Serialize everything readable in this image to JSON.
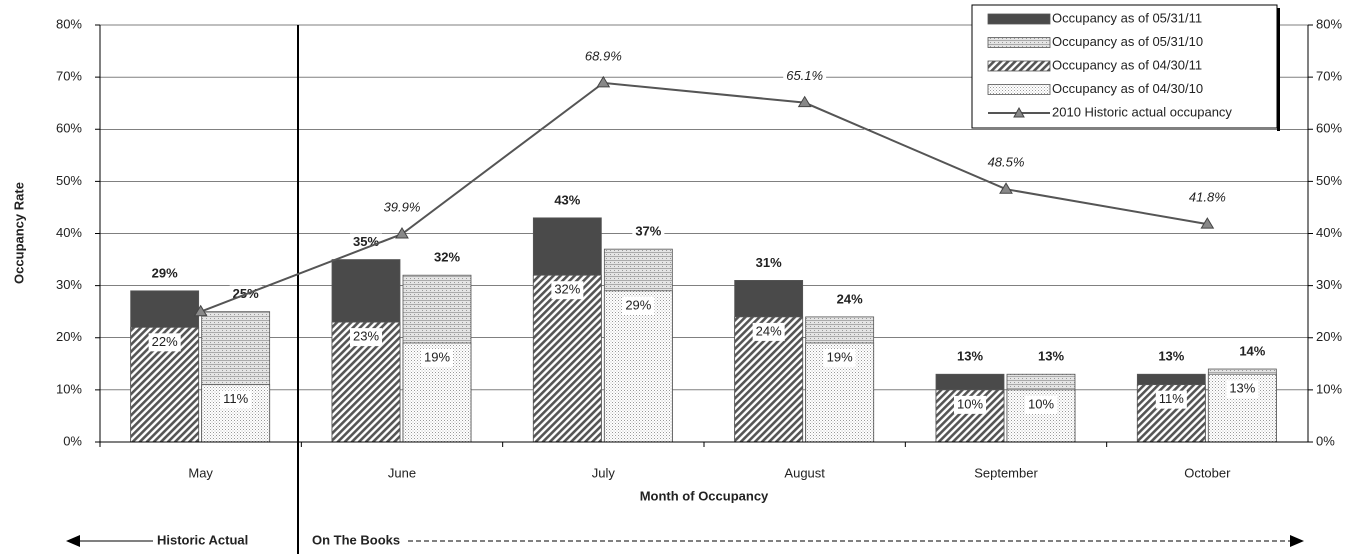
{
  "chart_data": {
    "type": "bar",
    "y_axis_label": "Occupancy Rate",
    "x_axis_label": "Month of Occupancy",
    "annotations": [
      "Historic Actual",
      "On The Books"
    ],
    "categories": [
      "May",
      "June",
      "July",
      "August",
      "September",
      "October"
    ],
    "ylim": [
      0,
      80
    ],
    "yticks": [
      {
        "value": 0,
        "label": "0%"
      },
      {
        "value": 10,
        "label": "10%"
      },
      {
        "value": 20,
        "label": "20%"
      },
      {
        "value": 30,
        "label": "30%"
      },
      {
        "value": 40,
        "label": "40%"
      },
      {
        "value": 50,
        "label": "50%"
      },
      {
        "value": 60,
        "label": "60%"
      },
      {
        "value": 70,
        "label": "70%"
      },
      {
        "value": 80,
        "label": "80%"
      }
    ],
    "y2lim": [
      0,
      80
    ],
    "y2ticks": [
      {
        "value": 0,
        "label": "0%"
      },
      {
        "value": 10,
        "label": "10%"
      },
      {
        "value": 20,
        "label": "20%"
      },
      {
        "value": 30,
        "label": "30%"
      },
      {
        "value": 40,
        "label": "40%"
      },
      {
        "value": 50,
        "label": "50%"
      },
      {
        "value": 60,
        "label": "60%"
      },
      {
        "value": 70,
        "label": "70%"
      },
      {
        "value": 80,
        "label": "80%"
      }
    ],
    "grid": true,
    "legend": "top-right",
    "series": [
      {
        "name": "Occupancy as of 05/31/11",
        "type": "bar",
        "group": 0,
        "pattern": "solid",
        "color": "#4a4a4a",
        "values": [
          29,
          35,
          43,
          31,
          13,
          13
        ],
        "value_labels": [
          "29%",
          "35%",
          "43%",
          "31%",
          "13%",
          "13%"
        ]
      },
      {
        "name": "Occupancy as of 05/31/10",
        "type": "bar",
        "group": 1,
        "pattern": "lines",
        "color": "#bdbdbd",
        "values": [
          25,
          32,
          37,
          24,
          13,
          14
        ],
        "value_labels": [
          "25%",
          "32%",
          "37%",
          "24%",
          "13%",
          "14%"
        ]
      },
      {
        "name": "Occupancy as of 04/30/11",
        "type": "bar",
        "group": 0,
        "pattern": "hatch",
        "color": "#555555",
        "values": [
          22,
          23,
          32,
          24,
          10,
          11
        ],
        "value_labels": [
          "22%",
          "23%",
          "32%",
          "24%",
          "10%",
          "11%"
        ]
      },
      {
        "name": "Occupancy as of 04/30/10",
        "type": "bar",
        "group": 1,
        "pattern": "dots",
        "color": "#c8c8c8",
        "values": [
          11,
          19,
          29,
          19,
          10,
          13
        ],
        "value_labels": [
          "11%",
          "19%",
          "29%",
          "19%",
          "10%",
          "13%"
        ]
      },
      {
        "name": "2010 Historic actual occupancy",
        "type": "line",
        "axis": "y2",
        "color": "#555555",
        "values": [
          25,
          39.9,
          68.9,
          65.1,
          48.5,
          41.8
        ],
        "value_labels": [
          null,
          "39.9%",
          "68.9%",
          "65.1%",
          "48.5%",
          "41.8%"
        ]
      }
    ]
  }
}
